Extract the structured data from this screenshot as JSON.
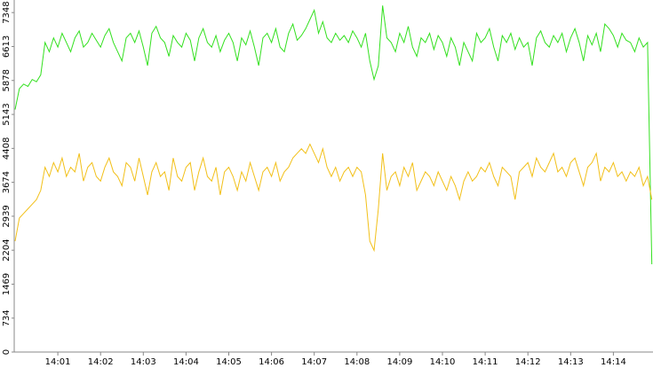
{
  "chart_data": {
    "type": "line",
    "categories": [
      null,
      null,
      null,
      null,
      null,
      null,
      null,
      null,
      null,
      null,
      "14:01",
      null,
      null,
      null,
      null,
      null,
      null,
      null,
      null,
      null,
      "14:02",
      null,
      null,
      null,
      null,
      null,
      null,
      null,
      null,
      null,
      "14:03",
      null,
      null,
      null,
      null,
      null,
      null,
      null,
      null,
      null,
      "14:04",
      null,
      null,
      null,
      null,
      null,
      null,
      null,
      null,
      null,
      "14:05",
      null,
      null,
      null,
      null,
      null,
      null,
      null,
      null,
      null,
      "14:06",
      null,
      null,
      null,
      null,
      null,
      null,
      null,
      null,
      null,
      "14:07",
      null,
      null,
      null,
      null,
      null,
      null,
      null,
      null,
      null,
      "14:08",
      null,
      null,
      null,
      null,
      null,
      null,
      null,
      null,
      null,
      "14:09",
      null,
      null,
      null,
      null,
      null,
      null,
      null,
      null,
      null,
      "14:10",
      null,
      null,
      null,
      null,
      null,
      null,
      null,
      null,
      null,
      "14:11",
      null,
      null,
      null,
      null,
      null,
      null,
      null,
      null,
      null,
      "14:12",
      null,
      null,
      null,
      null,
      null,
      null,
      null,
      null,
      null,
      "14:13",
      null,
      null,
      null,
      null,
      null,
      null,
      null,
      null,
      null,
      "14:14",
      null,
      null,
      null,
      null,
      null,
      null,
      null,
      null,
      null
    ],
    "series": [
      {
        "color": "#33e01f",
        "values": [
          5250,
          5700,
          5800,
          5750,
          5900,
          5850,
          6000,
          6700,
          6500,
          6800,
          6600,
          6900,
          6700,
          6500,
          6800,
          6950,
          6600,
          6700,
          6900,
          6750,
          6600,
          6850,
          7000,
          6700,
          6500,
          6300,
          6800,
          6900,
          6700,
          6950,
          6600,
          6200,
          6900,
          7050,
          6800,
          6700,
          6400,
          6850,
          6700,
          6600,
          6900,
          6750,
          6300,
          6800,
          7000,
          6700,
          6600,
          6850,
          6500,
          6750,
          6900,
          6700,
          6300,
          6800,
          6650,
          6950,
          6600,
          6200,
          6800,
          6900,
          6700,
          7000,
          6600,
          6500,
          6900,
          7100,
          6750,
          6850,
          7000,
          7200,
          7400,
          6900,
          7150,
          6800,
          6700,
          6900,
          6750,
          6850,
          6700,
          6950,
          6800,
          6600,
          6900,
          6300,
          5900,
          6200,
          7500,
          6800,
          6700,
          6500,
          6900,
          6700,
          7050,
          6600,
          6400,
          6800,
          6700,
          6900,
          6550,
          6850,
          6700,
          6400,
          6800,
          6600,
          6200,
          6700,
          6500,
          6300,
          6900,
          6700,
          6800,
          7000,
          6600,
          6300,
          6850,
          6700,
          6900,
          6550,
          6800,
          6600,
          6700,
          6200,
          6800,
          6950,
          6700,
          6600,
          6850,
          6700,
          6900,
          6500,
          6800,
          7000,
          6700,
          6300,
          6850,
          6650,
          6900,
          6500,
          7100,
          7000,
          6850,
          6600,
          6900,
          6750,
          6700,
          6500,
          6800,
          6600,
          6700,
          1900
        ]
      },
      {
        "color": "#f2c019",
        "values": [
          2400,
          2900,
          3000,
          3100,
          3200,
          3300,
          3500,
          4000,
          3800,
          4100,
          3900,
          4200,
          3800,
          4000,
          3900,
          4300,
          3700,
          4000,
          4100,
          3800,
          3700,
          4000,
          4200,
          3900,
          3800,
          3600,
          4100,
          4000,
          3700,
          4200,
          3800,
          3400,
          3900,
          4100,
          3800,
          3900,
          3500,
          4200,
          3800,
          3700,
          4000,
          4100,
          3500,
          3900,
          4200,
          3800,
          3700,
          4000,
          3400,
          3900,
          4000,
          3800,
          3500,
          3900,
          3700,
          4100,
          3800,
          3500,
          3900,
          4000,
          3800,
          4100,
          3700,
          3900,
          4000,
          4200,
          4300,
          4400,
          4300,
          4500,
          4300,
          4100,
          4400,
          4000,
          3800,
          4000,
          3700,
          3900,
          4000,
          3800,
          4000,
          3900,
          3400,
          2400,
          2200,
          3100,
          4300,
          3500,
          3800,
          3900,
          3600,
          4000,
          3800,
          4100,
          3500,
          3700,
          3900,
          3800,
          3600,
          3900,
          3700,
          3500,
          3800,
          3600,
          3300,
          3700,
          3900,
          3700,
          3800,
          4000,
          3900,
          4100,
          3800,
          3600,
          4000,
          3900,
          3800,
          3300,
          3900,
          4000,
          4100,
          3800,
          4200,
          4000,
          3900,
          4100,
          4300,
          3900,
          4000,
          3800,
          4100,
          4200,
          3900,
          3600,
          4000,
          4100,
          4300,
          3700,
          4000,
          3900,
          4100,
          3800,
          3900,
          3700,
          3900,
          3800,
          4000,
          3600,
          3800,
          3300
        ]
      }
    ],
    "ylim": [
      0,
      7620
    ],
    "yticks": [
      0,
      734,
      1469,
      2204,
      2939,
      3674,
      4408,
      5143,
      5878,
      6613,
      7348
    ]
  }
}
